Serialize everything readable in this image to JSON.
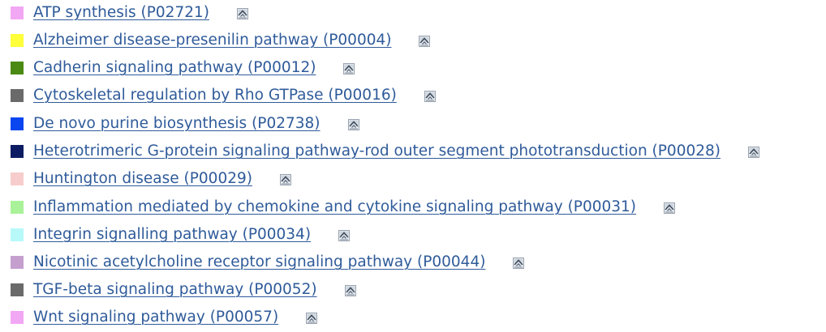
{
  "pathways": [
    {
      "label": "ATP synthesis (P02721)",
      "color": "#f2a7f4"
    },
    {
      "label": "Alzheimer disease-presenilin pathway (P00004)",
      "color": "#ffff3a"
    },
    {
      "label": "Cadherin signaling pathway (P00012)",
      "color": "#4a8a12"
    },
    {
      "label": "Cytoskeletal regulation by Rho GTPase (P00016)",
      "color": "#6a6a6a"
    },
    {
      "label": "De novo purine biosynthesis (P02738)",
      "color": "#0a46f0"
    },
    {
      "label": "Heterotrimeric G-protein signaling pathway-rod outer segment phototransduction (P00028)",
      "color": "#0d1c62"
    },
    {
      "label": "Huntington disease (P00029)",
      "color": "#f7cccc"
    },
    {
      "label": "Inflammation mediated by chemokine and cytokine signaling pathway (P00031)",
      "color": "#a9f29a"
    },
    {
      "label": "Integrin signalling pathway (P00034)",
      "color": "#b7f9f9"
    },
    {
      "label": "Nicotinic acetylcholine receptor signaling pathway (P00044)",
      "color": "#c5a0cf"
    },
    {
      "label": "TGF-beta signaling pathway (P00052)",
      "color": "#6a6a6a"
    },
    {
      "label": "Wnt signaling pathway (P00057)",
      "color": "#f2a7f4"
    }
  ],
  "icon_name": "pathway-diagram-icon"
}
